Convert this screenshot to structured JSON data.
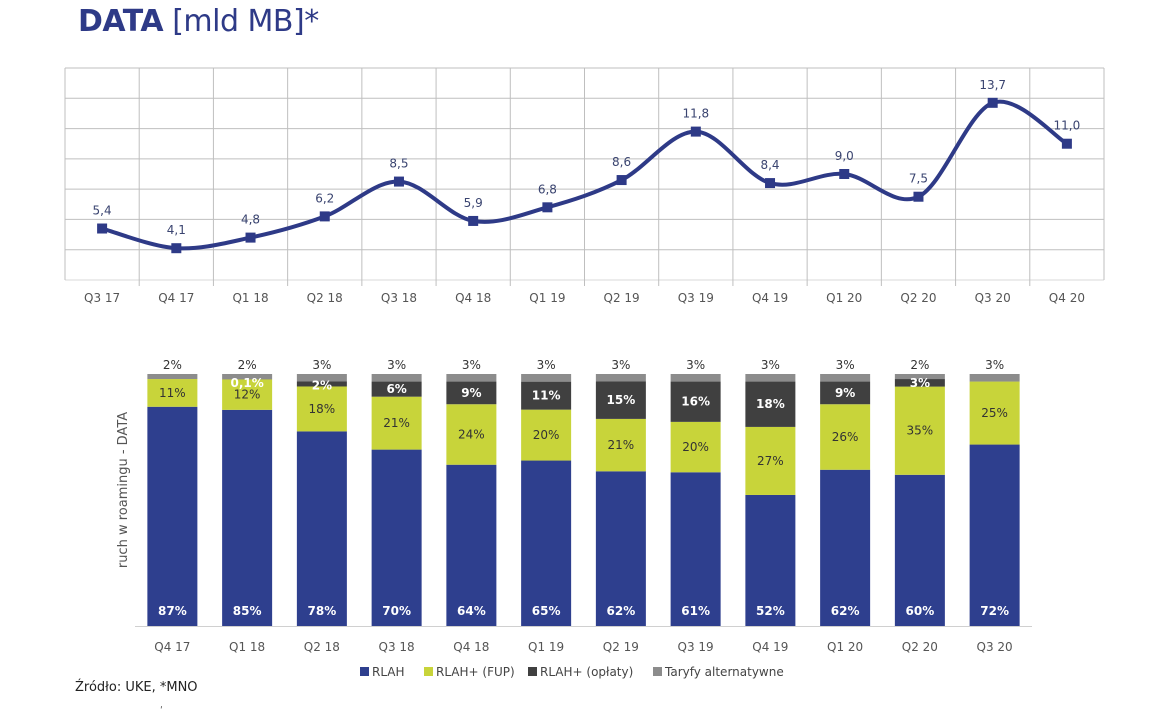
{
  "title": {
    "bold": "DATA",
    "rest": "[mld MB]*"
  },
  "source": "Źródło: UKE, *MNO",
  "stray_mark": "ʹ",
  "colors": {
    "title": "#2E3A87",
    "line": "#2E3A87",
    "rlah": "#2E3F8E",
    "fup": "#C8D43A",
    "oplaty": "#404040",
    "alt": "#8C8C8C",
    "grid": "#BFBFBF"
  },
  "chart_data": [
    {
      "type": "line",
      "title": "DATA [mld MB]*",
      "categories": [
        "Q3 17",
        "Q4 17",
        "Q1 18",
        "Q2 18",
        "Q3 18",
        "Q4 18",
        "Q1 19",
        "Q2 19",
        "Q3 19",
        "Q4 19",
        "Q1 20",
        "Q2 20",
        "Q3 20",
        "Q4 20"
      ],
      "values": [
        5.4,
        4.1,
        4.8,
        6.2,
        8.5,
        5.9,
        6.8,
        8.6,
        11.8,
        8.4,
        9.0,
        7.5,
        13.7,
        11.0
      ],
      "labels": [
        "5,4",
        "4,1",
        "4,8",
        "6,2",
        "8,5",
        "5,9",
        "6,8",
        "8,6",
        "11,8",
        "8,4",
        "9,0",
        "7,5",
        "13,7",
        "11,0"
      ],
      "ylim": [
        2,
        16
      ],
      "ystep": 2,
      "grid": true,
      "smooth": true,
      "marker": "square",
      "xlabel": "",
      "ylabel": ""
    },
    {
      "type": "bar",
      "stacked": true,
      "percent": true,
      "categories": [
        "Q4 17",
        "Q1 18",
        "Q2 18",
        "Q3 18",
        "Q4 18",
        "Q1 19",
        "Q2 19",
        "Q3 19",
        "Q4 19",
        "Q1 20",
        "Q2 20",
        "Q3 20"
      ],
      "ylabel": "ruch w roamingu - DATA",
      "ylim": [
        0,
        100
      ],
      "legend_position": "bottom",
      "series": [
        {
          "name": "RLAH",
          "key": "rlah",
          "values": [
            87,
            85,
            78,
            70,
            64,
            65,
            62,
            61,
            52,
            62,
            60,
            72
          ],
          "labels": [
            "87%",
            "85%",
            "78%",
            "70%",
            "64%",
            "65%",
            "62%",
            "61%",
            "52%",
            "62%",
            "60%",
            "72%"
          ]
        },
        {
          "name": "RLAH+ (FUP)",
          "key": "fup",
          "values": [
            11,
            12,
            18,
            21,
            24,
            20,
            21,
            20,
            27,
            26,
            35,
            25
          ],
          "labels": [
            "11%",
            "12%",
            "18%",
            "21%",
            "24%",
            "20%",
            "21%",
            "20%",
            "27%",
            "26%",
            "35%",
            "25%"
          ]
        },
        {
          "name": "RLAH+ (opłaty)",
          "key": "oplaty",
          "values": [
            0,
            0.1,
            2,
            6,
            9,
            11,
            15,
            16,
            18,
            9,
            3,
            0
          ],
          "labels": [
            "",
            "0,1%",
            "2%",
            "6%",
            "9%",
            "11%",
            "15%",
            "16%",
            "18%",
            "9%",
            "3%",
            ""
          ]
        },
        {
          "name": "Taryfy alternatywne",
          "key": "alt",
          "values": [
            2,
            2,
            3,
            3,
            3,
            3,
            3,
            3,
            3,
            3,
            2,
            3
          ],
          "labels": [
            "2%",
            "2%",
            "3%",
            "3%",
            "3%",
            "3%",
            "3%",
            "3%",
            "3%",
            "3%",
            "2%",
            "3%"
          ]
        }
      ]
    }
  ]
}
